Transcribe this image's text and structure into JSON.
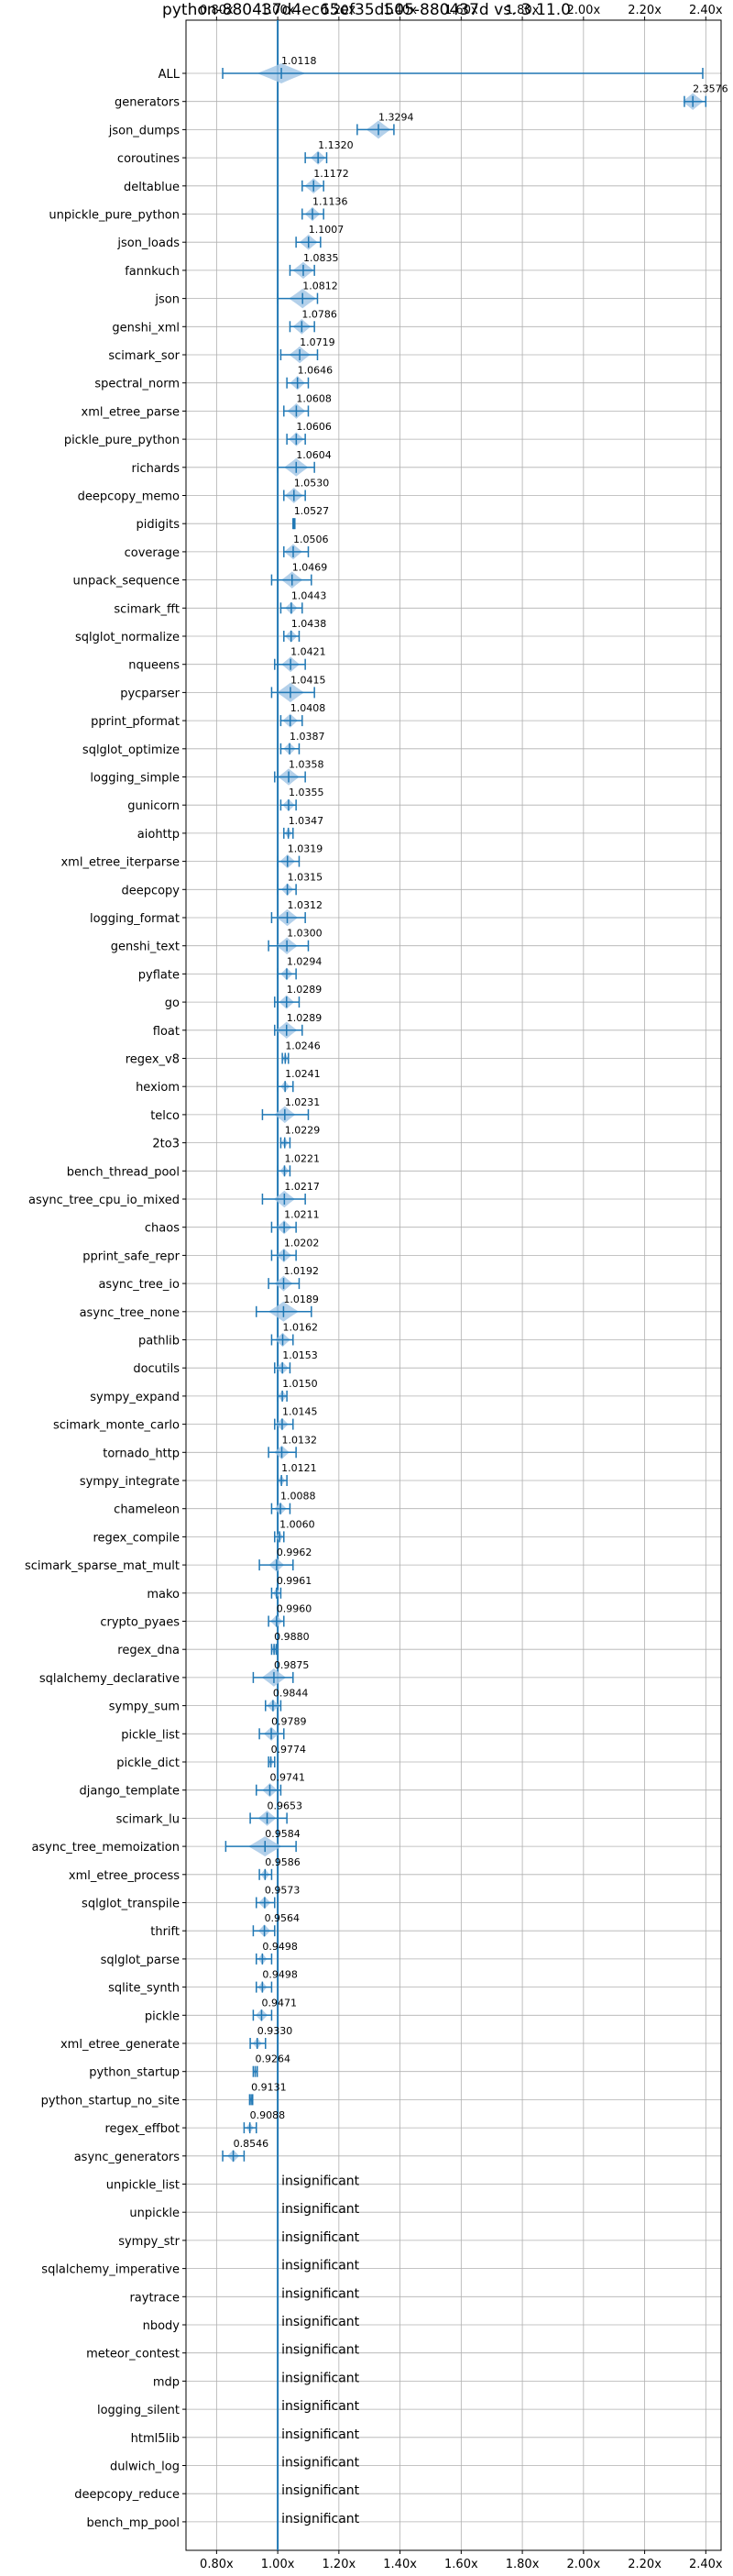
{
  "chart_data": {
    "type": "violin",
    "title": "python-880437d4ec65ef35d505-880437d vs. 3.11.0",
    "xlim": [
      0.7,
      2.45
    ],
    "x_ticks": [
      0.8,
      1.0,
      1.2,
      1.4,
      1.6,
      1.8,
      2.0,
      2.2,
      2.4
    ],
    "x_tick_labels": [
      "0.80x",
      "1.00x",
      "1.20x",
      "1.40x",
      "1.60x",
      "1.80x",
      "2.00x",
      "2.20x",
      "2.40x"
    ],
    "reference_x": 1.0,
    "grid": true,
    "color": "#1f77b4",
    "violin_color": "#a6c8e6",
    "insignificant_label": "insignificant",
    "benchmarks": [
      {
        "name": "ALL",
        "value": 1.0118,
        "label": "1.0118",
        "min": 0.82,
        "max": 2.39,
        "spread": 0.08
      },
      {
        "name": "generators",
        "value": 2.3576,
        "label": "2.3576",
        "min": 2.33,
        "max": 2.4,
        "spread": 0.035
      },
      {
        "name": "json_dumps",
        "value": 1.3294,
        "label": "1.3294",
        "min": 1.26,
        "max": 1.38,
        "spread": 0.04
      },
      {
        "name": "coroutines",
        "value": 1.132,
        "label": "1.1320",
        "min": 1.09,
        "max": 1.16,
        "spread": 0.025
      },
      {
        "name": "deltablue",
        "value": 1.1172,
        "label": "1.1172",
        "min": 1.08,
        "max": 1.15,
        "spread": 0.03
      },
      {
        "name": "unpickle_pure_python",
        "value": 1.1136,
        "label": "1.1136",
        "min": 1.08,
        "max": 1.15,
        "spread": 0.025
      },
      {
        "name": "json_loads",
        "value": 1.1007,
        "label": "1.1007",
        "min": 1.06,
        "max": 1.14,
        "spread": 0.03
      },
      {
        "name": "fannkuch",
        "value": 1.0835,
        "label": "1.0835",
        "min": 1.04,
        "max": 1.12,
        "spread": 0.035
      },
      {
        "name": "json",
        "value": 1.0812,
        "label": "1.0812",
        "min": 1.0,
        "max": 1.13,
        "spread": 0.045
      },
      {
        "name": "genshi_xml",
        "value": 1.0786,
        "label": "1.0786",
        "min": 1.04,
        "max": 1.12,
        "spread": 0.03
      },
      {
        "name": "scimark_sor",
        "value": 1.0719,
        "label": "1.0719",
        "min": 1.01,
        "max": 1.13,
        "spread": 0.035
      },
      {
        "name": "spectral_norm",
        "value": 1.0646,
        "label": "1.0646",
        "min": 1.03,
        "max": 1.1,
        "spread": 0.025
      },
      {
        "name": "xml_etree_parse",
        "value": 1.0608,
        "label": "1.0608",
        "min": 1.02,
        "max": 1.1,
        "spread": 0.03
      },
      {
        "name": "pickle_pure_python",
        "value": 1.0606,
        "label": "1.0606",
        "min": 1.03,
        "max": 1.09,
        "spread": 0.025
      },
      {
        "name": "richards",
        "value": 1.0604,
        "label": "1.0604",
        "min": 1.0,
        "max": 1.12,
        "spread": 0.04
      },
      {
        "name": "deepcopy_memo",
        "value": 1.053,
        "label": "1.0530",
        "min": 1.02,
        "max": 1.09,
        "spread": 0.03
      },
      {
        "name": "pidigits",
        "value": 1.0527,
        "label": "1.0527",
        "min": 1.05,
        "max": 1.056,
        "spread": 0.004
      },
      {
        "name": "coverage",
        "value": 1.0506,
        "label": "1.0506",
        "min": 1.02,
        "max": 1.1,
        "spread": 0.03
      },
      {
        "name": "unpack_sequence",
        "value": 1.0469,
        "label": "1.0469",
        "min": 0.98,
        "max": 1.11,
        "spread": 0.035
      },
      {
        "name": "scimark_fft",
        "value": 1.0443,
        "label": "1.0443",
        "min": 1.01,
        "max": 1.08,
        "spread": 0.02
      },
      {
        "name": "sqlglot_normalize",
        "value": 1.0438,
        "label": "1.0438",
        "min": 1.02,
        "max": 1.07,
        "spread": 0.02
      },
      {
        "name": "nqueens",
        "value": 1.0421,
        "label": "1.0421",
        "min": 0.99,
        "max": 1.09,
        "spread": 0.03
      },
      {
        "name": "pycparser",
        "value": 1.0415,
        "label": "1.0415",
        "min": 0.98,
        "max": 1.12,
        "spread": 0.045
      },
      {
        "name": "pprint_pformat",
        "value": 1.0408,
        "label": "1.0408",
        "min": 1.01,
        "max": 1.08,
        "spread": 0.025
      },
      {
        "name": "sqlglot_optimize",
        "value": 1.0387,
        "label": "1.0387",
        "min": 1.01,
        "max": 1.07,
        "spread": 0.02
      },
      {
        "name": "logging_simple",
        "value": 1.0358,
        "label": "1.0358",
        "min": 0.99,
        "max": 1.09,
        "spread": 0.035
      },
      {
        "name": "gunicorn",
        "value": 1.0355,
        "label": "1.0355",
        "min": 1.01,
        "max": 1.06,
        "spread": 0.02
      },
      {
        "name": "aiohttp",
        "value": 1.0347,
        "label": "1.0347",
        "min": 1.02,
        "max": 1.05,
        "spread": 0.012
      },
      {
        "name": "xml_etree_iterparse",
        "value": 1.0319,
        "label": "1.0319",
        "min": 1.0,
        "max": 1.07,
        "spread": 0.025
      },
      {
        "name": "deepcopy",
        "value": 1.0315,
        "label": "1.0315",
        "min": 1.0,
        "max": 1.06,
        "spread": 0.02
      },
      {
        "name": "logging_format",
        "value": 1.0312,
        "label": "1.0312",
        "min": 0.98,
        "max": 1.09,
        "spread": 0.035
      },
      {
        "name": "genshi_text",
        "value": 1.03,
        "label": "1.0300",
        "min": 0.97,
        "max": 1.1,
        "spread": 0.035
      },
      {
        "name": "pyflate",
        "value": 1.0294,
        "label": "1.0294",
        "min": 1.0,
        "max": 1.06,
        "spread": 0.02
      },
      {
        "name": "go",
        "value": 1.0289,
        "label": "1.0289",
        "min": 0.99,
        "max": 1.07,
        "spread": 0.025
      },
      {
        "name": "float",
        "value": 1.0289,
        "label": "1.0289",
        "min": 0.99,
        "max": 1.08,
        "spread": 0.035
      },
      {
        "name": "regex_v8",
        "value": 1.0246,
        "label": "1.0246",
        "min": 1.015,
        "max": 1.035,
        "spread": 0.01
      },
      {
        "name": "hexiom",
        "value": 1.0241,
        "label": "1.0241",
        "min": 1.0,
        "max": 1.05,
        "spread": 0.015
      },
      {
        "name": "telco",
        "value": 1.0231,
        "label": "1.0231",
        "min": 0.95,
        "max": 1.1,
        "spread": 0.035
      },
      {
        "name": "2to3",
        "value": 1.0229,
        "label": "1.0229",
        "min": 1.01,
        "max": 1.04,
        "spread": 0.012
      },
      {
        "name": "bench_thread_pool",
        "value": 1.0221,
        "label": "1.0221",
        "min": 1.0,
        "max": 1.04,
        "spread": 0.015
      },
      {
        "name": "async_tree_cpu_io_mixed",
        "value": 1.0217,
        "label": "1.0217",
        "min": 0.95,
        "max": 1.09,
        "spread": 0.035
      },
      {
        "name": "chaos",
        "value": 1.0211,
        "label": "1.0211",
        "min": 0.98,
        "max": 1.06,
        "spread": 0.025
      },
      {
        "name": "pprint_safe_repr",
        "value": 1.0202,
        "label": "1.0202",
        "min": 0.98,
        "max": 1.06,
        "spread": 0.025
      },
      {
        "name": "async_tree_io",
        "value": 1.0192,
        "label": "1.0192",
        "min": 0.97,
        "max": 1.07,
        "spread": 0.03
      },
      {
        "name": "async_tree_none",
        "value": 1.0189,
        "label": "1.0189",
        "min": 0.93,
        "max": 1.11,
        "spread": 0.05
      },
      {
        "name": "pathlib",
        "value": 1.0162,
        "label": "1.0162",
        "min": 0.98,
        "max": 1.05,
        "spread": 0.025
      },
      {
        "name": "docutils",
        "value": 1.0153,
        "label": "1.0153",
        "min": 0.99,
        "max": 1.04,
        "spread": 0.02
      },
      {
        "name": "sympy_expand",
        "value": 1.015,
        "label": "1.0150",
        "min": 1.0,
        "max": 1.03,
        "spread": 0.015
      },
      {
        "name": "scimark_monte_carlo",
        "value": 1.0145,
        "label": "1.0145",
        "min": 0.99,
        "max": 1.05,
        "spread": 0.02
      },
      {
        "name": "tornado_http",
        "value": 1.0132,
        "label": "1.0132",
        "min": 0.97,
        "max": 1.06,
        "spread": 0.025
      },
      {
        "name": "sympy_integrate",
        "value": 1.0121,
        "label": "1.0121",
        "min": 1.0,
        "max": 1.03,
        "spread": 0.012
      },
      {
        "name": "chameleon",
        "value": 1.0088,
        "label": "1.0088",
        "min": 0.98,
        "max": 1.04,
        "spread": 0.02
      },
      {
        "name": "regex_compile",
        "value": 1.006,
        "label": "1.0060",
        "min": 0.99,
        "max": 1.02,
        "spread": 0.012
      },
      {
        "name": "scimark_sparse_mat_mult",
        "value": 0.9962,
        "label": "0.9962",
        "min": 0.94,
        "max": 1.05,
        "spread": 0.025
      },
      {
        "name": "mako",
        "value": 0.9961,
        "label": "0.9961",
        "min": 0.98,
        "max": 1.01,
        "spread": 0.012
      },
      {
        "name": "crypto_pyaes",
        "value": 0.996,
        "label": "0.9960",
        "min": 0.97,
        "max": 1.02,
        "spread": 0.02
      },
      {
        "name": "regex_dna",
        "value": 0.988,
        "label": "0.9880",
        "min": 0.98,
        "max": 0.995,
        "spread": 0.01
      },
      {
        "name": "sqlalchemy_declarative",
        "value": 0.9875,
        "label": "0.9875",
        "min": 0.92,
        "max": 1.05,
        "spread": 0.04
      },
      {
        "name": "sympy_sum",
        "value": 0.9844,
        "label": "0.9844",
        "min": 0.96,
        "max": 1.01,
        "spread": 0.02
      },
      {
        "name": "pickle_list",
        "value": 0.9789,
        "label": "0.9789",
        "min": 0.94,
        "max": 1.02,
        "spread": 0.025
      },
      {
        "name": "pickle_dict",
        "value": 0.9774,
        "label": "0.9774",
        "min": 0.97,
        "max": 0.99,
        "spread": 0.01
      },
      {
        "name": "django_template",
        "value": 0.9741,
        "label": "0.9741",
        "min": 0.93,
        "max": 1.01,
        "spread": 0.025
      },
      {
        "name": "scimark_lu",
        "value": 0.9653,
        "label": "0.9653",
        "min": 0.91,
        "max": 1.03,
        "spread": 0.03
      },
      {
        "name": "async_tree_memoization",
        "value": 0.9584,
        "label": "0.9584",
        "min": 0.83,
        "max": 1.06,
        "spread": 0.055
      },
      {
        "name": "xml_etree_process",
        "value": 0.9586,
        "label": "0.9586",
        "min": 0.94,
        "max": 0.98,
        "spread": 0.015
      },
      {
        "name": "sqlglot_transpile",
        "value": 0.9573,
        "label": "0.9573",
        "min": 0.93,
        "max": 0.99,
        "spread": 0.02
      },
      {
        "name": "thrift",
        "value": 0.9564,
        "label": "0.9564",
        "min": 0.92,
        "max": 0.99,
        "spread": 0.02
      },
      {
        "name": "sqlglot_parse",
        "value": 0.9498,
        "label": "0.9498",
        "min": 0.93,
        "max": 0.98,
        "spread": 0.015
      },
      {
        "name": "sqlite_synth",
        "value": 0.9498,
        "label": "0.9498",
        "min": 0.93,
        "max": 0.98,
        "spread": 0.015
      },
      {
        "name": "pickle",
        "value": 0.9471,
        "label": "0.9471",
        "min": 0.92,
        "max": 0.98,
        "spread": 0.02
      },
      {
        "name": "xml_etree_generate",
        "value": 0.933,
        "label": "0.9330",
        "min": 0.91,
        "max": 0.96,
        "spread": 0.015
      },
      {
        "name": "python_startup",
        "value": 0.9264,
        "label": "0.9264",
        "min": 0.92,
        "max": 0.933,
        "spread": 0.004
      },
      {
        "name": "python_startup_no_site",
        "value": 0.9131,
        "label": "0.9131",
        "min": 0.908,
        "max": 0.918,
        "spread": 0.003
      },
      {
        "name": "regex_effbot",
        "value": 0.9088,
        "label": "0.9088",
        "min": 0.89,
        "max": 0.93,
        "spread": 0.012
      },
      {
        "name": "async_generators",
        "value": 0.8546,
        "label": "0.8546",
        "min": 0.82,
        "max": 0.89,
        "spread": 0.02
      },
      {
        "name": "unpickle_list",
        "insignificant": true
      },
      {
        "name": "unpickle",
        "insignificant": true
      },
      {
        "name": "sympy_str",
        "insignificant": true
      },
      {
        "name": "sqlalchemy_imperative",
        "insignificant": true
      },
      {
        "name": "raytrace",
        "insignificant": true
      },
      {
        "name": "nbody",
        "insignificant": true
      },
      {
        "name": "meteor_contest",
        "insignificant": true
      },
      {
        "name": "mdp",
        "insignificant": true
      },
      {
        "name": "logging_silent",
        "insignificant": true
      },
      {
        "name": "html5lib",
        "insignificant": true
      },
      {
        "name": "dulwich_log",
        "insignificant": true
      },
      {
        "name": "deepcopy_reduce",
        "insignificant": true
      },
      {
        "name": "bench_mp_pool",
        "insignificant": true
      }
    ]
  }
}
